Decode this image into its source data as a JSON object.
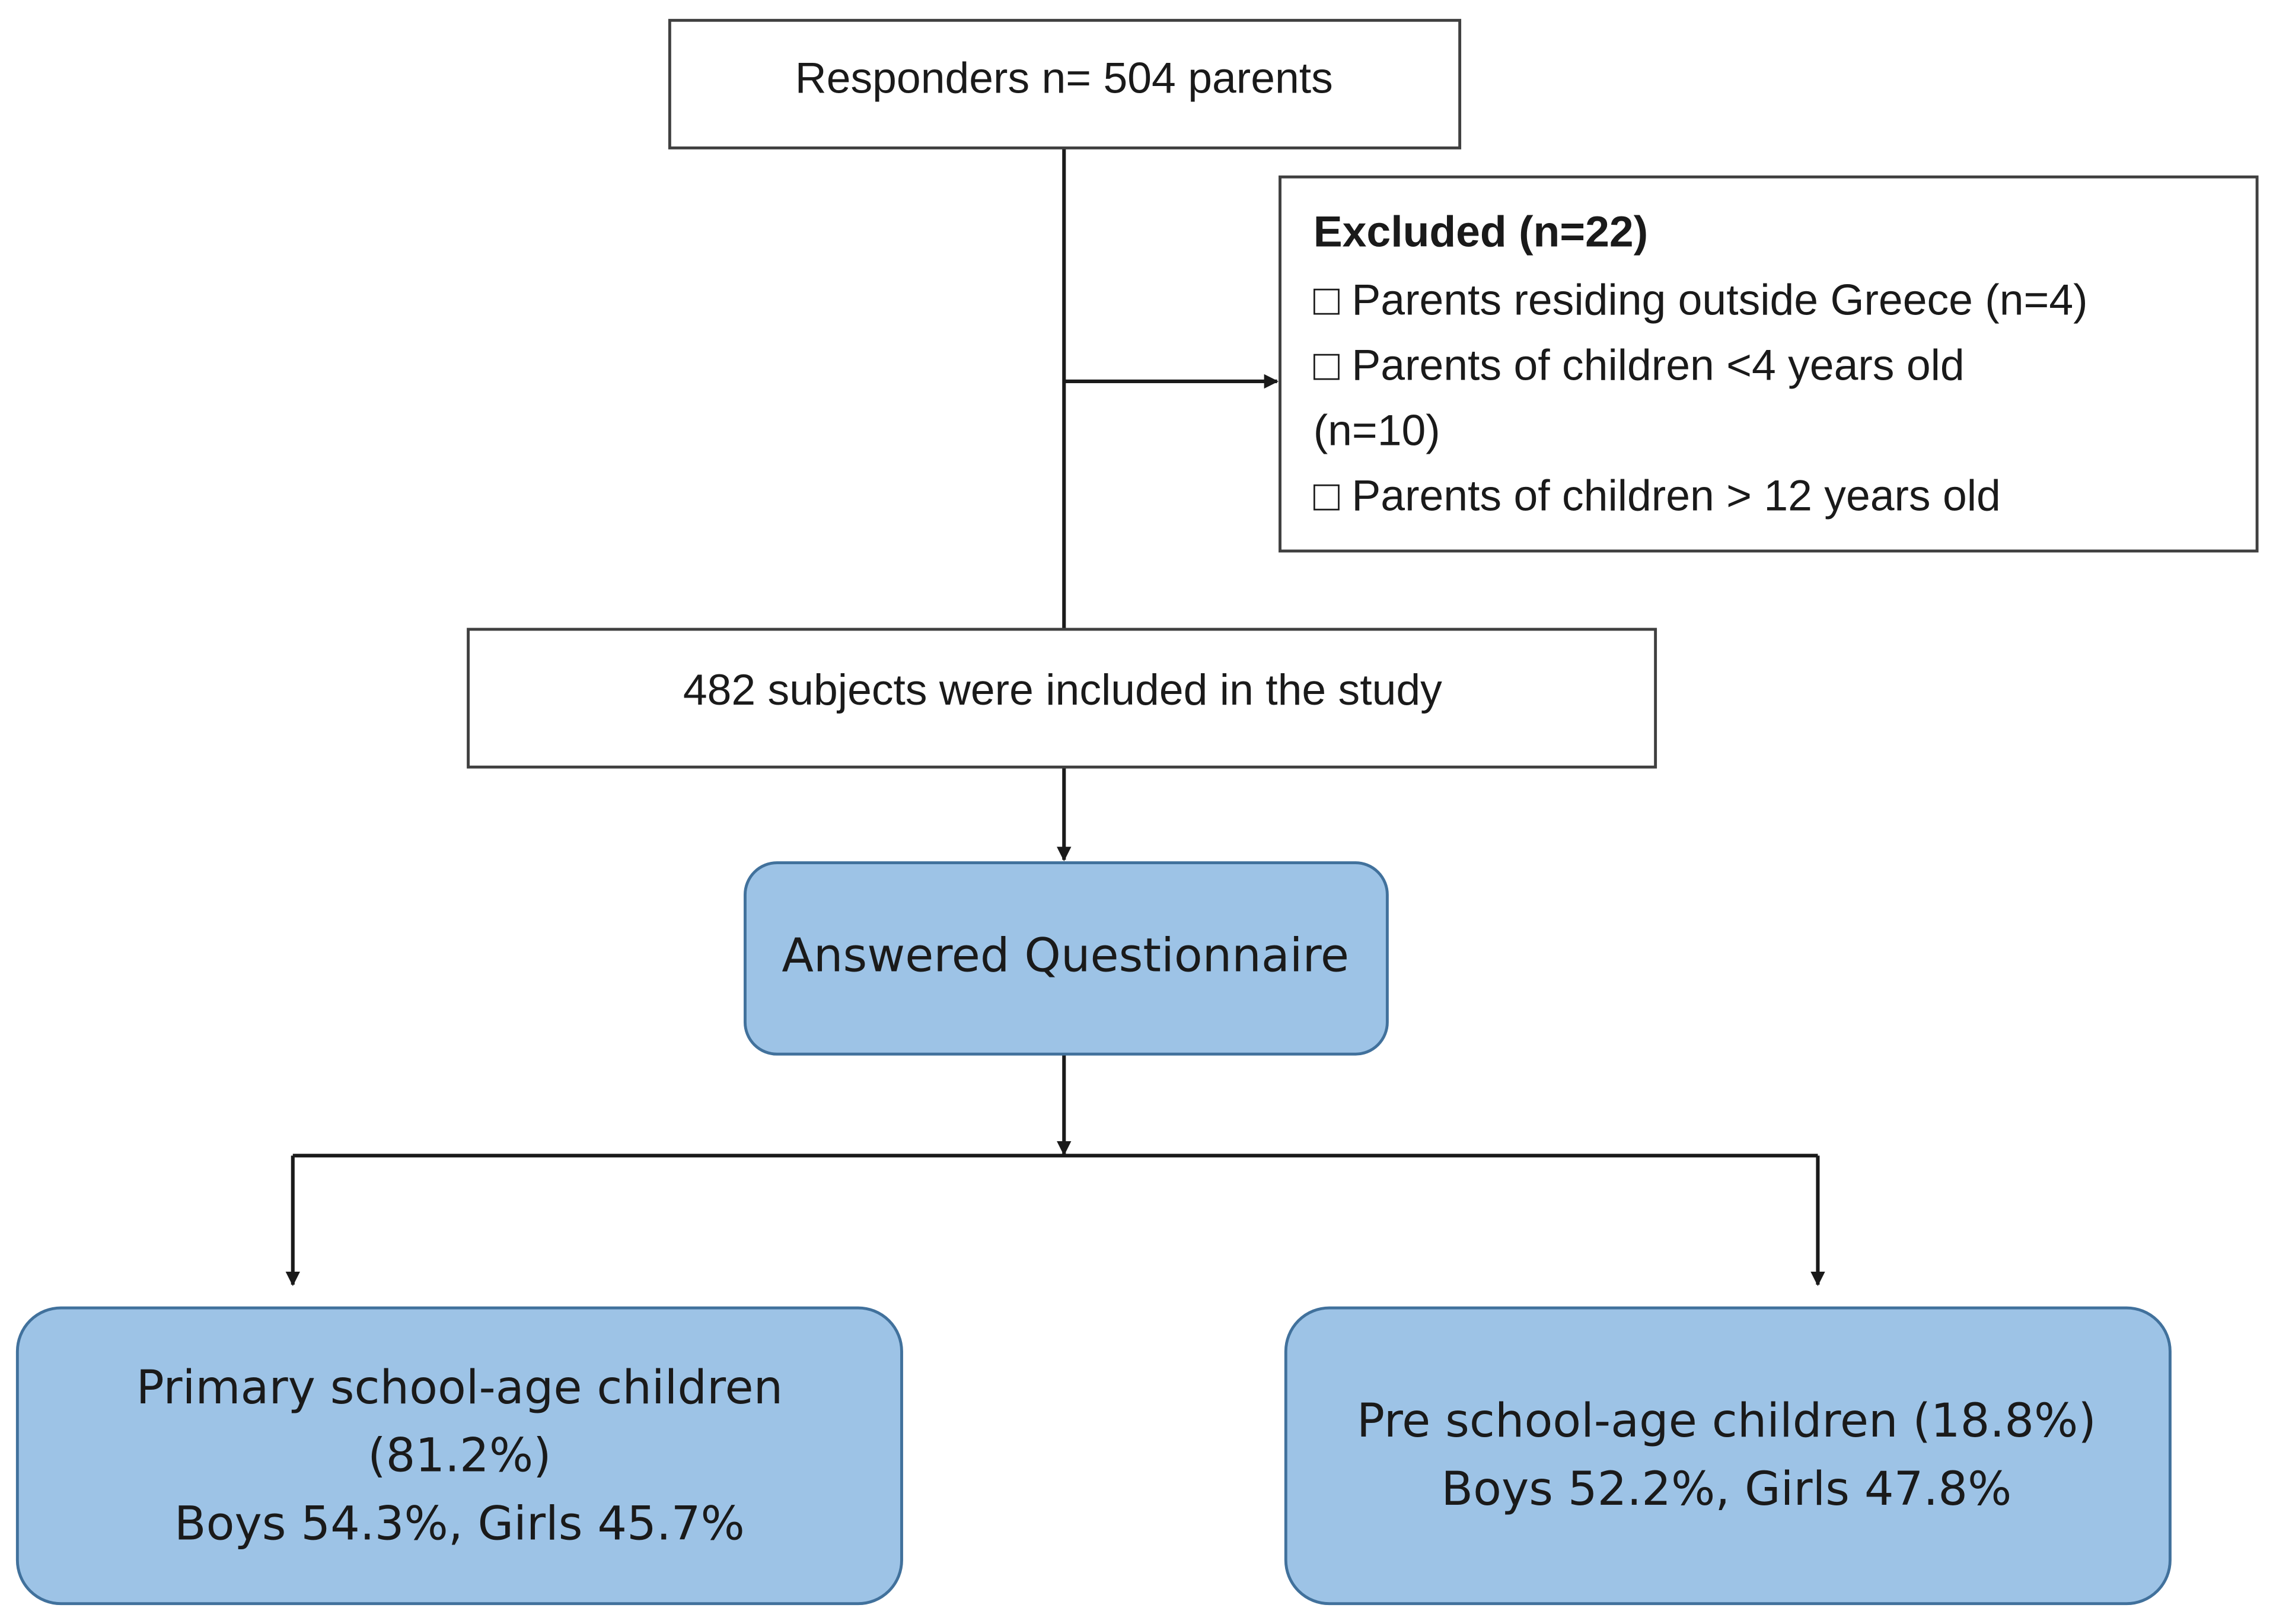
{
  "nodes": [
    {
      "lines": [
        "Responders n= 504 parents"
      ]
    },
    {
      "lines": [
        "Excluded (n=22)",
        "□ Parents residing outside Greece (n=4)",
        "□ Parents of children <4 years old",
        "(n=10)",
        "□ Parents of children > 12 years old"
      ]
    },
    {
      "lines": [
        "482 subjects were included in the study"
      ]
    },
    {
      "lines": [
        "Answered Questionnaire"
      ]
    },
    {
      "lines": [
        "Primary school-age children",
        "(81.2%)",
        "Boys 54.3%, Girls 45.7%"
      ]
    },
    {
      "lines": [
        "Pre school-age children (18.8%)",
        "Boys 52.2%, Girls 47.8%"
      ]
    }
  ]
}
